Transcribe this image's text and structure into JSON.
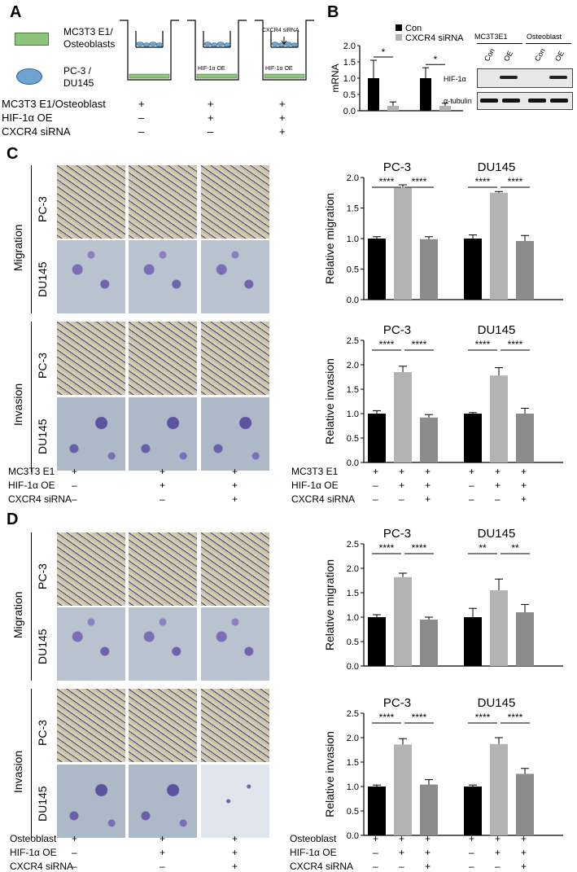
{
  "panel_letters": [
    "A",
    "B",
    "C",
    "D"
  ],
  "panelA": {
    "legend_top": "MC3T3 E1/",
    "legend_top2": "Osteoblasts",
    "legend_bottom": "PC-3 /",
    "legend_bottom2": "DU145",
    "well_label_2": "HIF-1α OE",
    "well_label_3": "HIF-1α OE",
    "well_siRNA": "CXCR4 siRNA",
    "rows": [
      {
        "label": "MC3T3 E1/Osteoblast",
        "vals": [
          "+",
          "+",
          "+"
        ]
      },
      {
        "label": "HIF-1α OE",
        "vals": [
          "–",
          "+",
          "+"
        ]
      },
      {
        "label": "CXCR4 siRNA",
        "vals": [
          "–",
          "–",
          "+"
        ]
      }
    ]
  },
  "panelB": {
    "ylabel": "mRNA",
    "legend": [
      "Con",
      "CXCR4 siRNA"
    ],
    "blot_cols": [
      "MC3T3E1",
      "Osteoblast"
    ],
    "blot_lanes": [
      "Con",
      "OE",
      "Con",
      "OE"
    ],
    "blot_rows": [
      "HIF-1α",
      "α-tubulin"
    ],
    "sig": [
      "*",
      "*"
    ]
  },
  "panelC": {
    "row_groups": [
      "Migration",
      "Invasion"
    ],
    "row_cells": [
      "PC-3",
      "DU145",
      "PC-3",
      "DU145"
    ],
    "rows": [
      {
        "label": "MC3T3 E1",
        "vals": [
          "+",
          "+",
          "+"
        ]
      },
      {
        "label": "HIF-1α OE",
        "vals": [
          "–",
          "+",
          "+"
        ]
      },
      {
        "label": "CXCR4 siRNA",
        "vals": [
          "–",
          "–",
          "+"
        ]
      }
    ],
    "chart_rows": [
      {
        "label": "MC3T3 E1",
        "vals": [
          "+",
          "+",
          "+",
          "+",
          "+",
          "+"
        ]
      },
      {
        "label": "HIF-1α OE",
        "vals": [
          "–",
          "+",
          "+",
          "–",
          "+",
          "+"
        ]
      },
      {
        "label": "CXCR4 siRNA",
        "vals": [
          "–",
          "–",
          "+",
          "–",
          "–",
          "+"
        ]
      }
    ]
  },
  "panelD": {
    "row_groups": [
      "Migration",
      "Invasion"
    ],
    "row_cells": [
      "PC-3",
      "DU145",
      "PC-3",
      "DU145"
    ],
    "rows": [
      {
        "label": "Osteoblast",
        "vals": [
          "+",
          "+",
          "+"
        ]
      },
      {
        "label": "HIF-1α OE",
        "vals": [
          "–",
          "+",
          "+"
        ]
      },
      {
        "label": "CXCR4 siRNA",
        "vals": [
          "–",
          "–",
          "+"
        ]
      }
    ],
    "chart_rows": [
      {
        "label": "Osteoblast",
        "vals": [
          "+",
          "+",
          "+",
          "+",
          "+",
          "+"
        ]
      },
      {
        "label": "HIF-1α OE",
        "vals": [
          "–",
          "+",
          "+",
          "–",
          "+",
          "+"
        ]
      },
      {
        "label": "CXCR4 siRNA",
        "vals": [
          "–",
          "–",
          "+",
          "–",
          "–",
          "+"
        ]
      }
    ]
  },
  "colors": {
    "black": "#000000",
    "lightgray": "#b3b3b3",
    "midgray": "#8c8c8c"
  },
  "chart_data": [
    {
      "id": "B",
      "type": "bar",
      "ylabel": "mRNA",
      "ylim": [
        0,
        2.0
      ],
      "yticks": [
        "0.0",
        "0.5",
        "1.0",
        "1.5",
        "2.0"
      ],
      "legend": [
        "Con",
        "CXCR4 siRNA"
      ],
      "groups": [
        {
          "values": [
            1.0,
            0.15
          ],
          "errors": [
            0.55,
            0.12
          ],
          "sig": "*"
        },
        {
          "values": [
            1.0,
            0.15
          ],
          "errors": [
            0.32,
            0.08
          ],
          "sig": "*"
        }
      ]
    },
    {
      "id": "C-mig",
      "type": "bar",
      "ylabel": "Relative migration",
      "ylim": [
        0,
        2.0
      ],
      "yticks": [
        "0.0",
        "0.5",
        "1.0",
        "1.5",
        "2.0"
      ],
      "titles": [
        "PC-3",
        "DU145"
      ],
      "groups": [
        {
          "values": [
            1.0,
            1.83,
            0.99
          ],
          "errors": [
            0.03,
            0.05,
            0.04
          ],
          "sig": [
            "****",
            "****"
          ]
        },
        {
          "values": [
            1.0,
            1.75,
            0.96
          ],
          "errors": [
            0.06,
            0.02,
            0.09
          ],
          "sig": [
            "****",
            "****"
          ]
        }
      ]
    },
    {
      "id": "C-inv",
      "type": "bar",
      "ylabel": "Relative invasion",
      "ylim": [
        0,
        2.5
      ],
      "yticks": [
        "0.0",
        "0.5",
        "1.0",
        "1.5",
        "2.0",
        "2.5"
      ],
      "titles": [
        "PC-3",
        "DU145"
      ],
      "groups": [
        {
          "values": [
            1.0,
            1.85,
            0.92
          ],
          "errors": [
            0.06,
            0.12,
            0.06
          ],
          "sig": [
            "****",
            "****"
          ]
        },
        {
          "values": [
            1.0,
            1.78,
            1.0
          ],
          "errors": [
            0.02,
            0.16,
            0.11
          ],
          "sig": [
            "****",
            "****"
          ]
        }
      ]
    },
    {
      "id": "D-mig",
      "type": "bar",
      "ylabel": "Relative migration",
      "ylim": [
        0,
        2.5
      ],
      "yticks": [
        "0.0",
        "0.5",
        "1.0",
        "1.5",
        "2.0",
        "2.5"
      ],
      "titles": [
        "PC-3",
        "DU145"
      ],
      "groups": [
        {
          "values": [
            1.0,
            1.82,
            0.95
          ],
          "errors": [
            0.05,
            0.08,
            0.05
          ],
          "sig": [
            "****",
            "****"
          ]
        },
        {
          "values": [
            1.0,
            1.55,
            1.1
          ],
          "errors": [
            0.18,
            0.23,
            0.16
          ],
          "sig": [
            "**",
            "**"
          ]
        }
      ]
    },
    {
      "id": "D-inv",
      "type": "bar",
      "ylabel": "Relative invasion",
      "ylim": [
        0,
        2.5
      ],
      "yticks": [
        "0.0",
        "0.5",
        "1.0",
        "1.5",
        "2.0",
        "2.5"
      ],
      "titles": [
        "PC-3",
        "DU145"
      ],
      "groups": [
        {
          "values": [
            1.0,
            1.86,
            1.04
          ],
          "errors": [
            0.03,
            0.12,
            0.1
          ],
          "sig": [
            "****",
            "****"
          ]
        },
        {
          "values": [
            1.0,
            1.87,
            1.26
          ],
          "errors": [
            0.03,
            0.13,
            0.11
          ],
          "sig": [
            "****",
            "****"
          ]
        }
      ]
    }
  ]
}
